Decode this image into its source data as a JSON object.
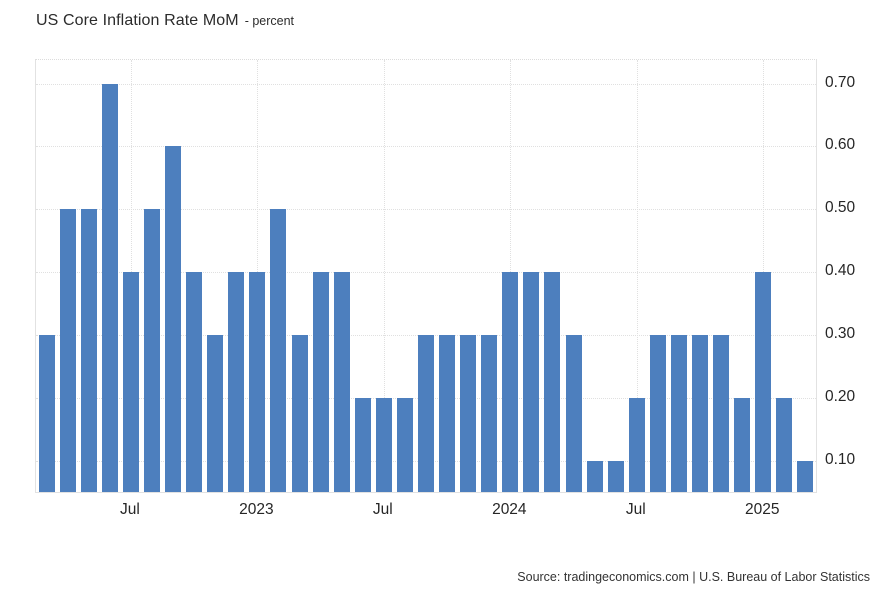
{
  "header": {
    "title": "US Core Inflation Rate MoM",
    "subtitle": "- percent"
  },
  "footer": {
    "source": "Source: tradingeconomics.com | U.S. Bureau of Labor Statistics"
  },
  "colors": {
    "bar": "#4d7fbe",
    "grid": "#e0e0e0",
    "border": "#e2e2e2",
    "text": "#262626"
  },
  "chart_data": {
    "type": "bar",
    "title": "US Core Inflation Rate MoM",
    "ylabel": "percent",
    "x": [
      "Mar 2022",
      "Apr 2022",
      "May 2022",
      "Jun 2022",
      "Jul 2022",
      "Aug 2022",
      "Sep 2022",
      "Oct 2022",
      "Nov 2022",
      "Dec 2022",
      "Jan 2023",
      "Feb 2023",
      "Mar 2023",
      "Apr 2023",
      "May 2023",
      "Jun 2023",
      "Jul 2023",
      "Aug 2023",
      "Sep 2023",
      "Oct 2023",
      "Nov 2023",
      "Dec 2023",
      "Jan 2024",
      "Feb 2024",
      "Mar 2024",
      "Apr 2024",
      "May 2024",
      "Jun 2024",
      "Jul 2024",
      "Aug 2024",
      "Sep 2024",
      "Oct 2024",
      "Nov 2024",
      "Dec 2024",
      "Jan 2025",
      "Feb 2025",
      "Mar 2025"
    ],
    "values": [
      0.3,
      0.5,
      0.5,
      0.7,
      0.4,
      0.5,
      0.6,
      0.4,
      0.3,
      0.4,
      0.4,
      0.5,
      0.3,
      0.4,
      0.4,
      0.2,
      0.2,
      0.2,
      0.3,
      0.3,
      0.3,
      0.3,
      0.4,
      0.4,
      0.4,
      0.3,
      0.1,
      0.1,
      0.2,
      0.3,
      0.3,
      0.3,
      0.3,
      0.2,
      0.4,
      0.2,
      0.1
    ],
    "xticks": [
      {
        "index": 4,
        "label": "Jul"
      },
      {
        "index": 10,
        "label": "2023"
      },
      {
        "index": 16,
        "label": "Jul"
      },
      {
        "index": 22,
        "label": "2024"
      },
      {
        "index": 28,
        "label": "Jul"
      },
      {
        "index": 34,
        "label": "2025"
      }
    ],
    "yticks": [
      {
        "value": 0.7,
        "label": "0.70"
      },
      {
        "value": 0.6,
        "label": "0.60"
      },
      {
        "value": 0.5,
        "label": "0.50"
      },
      {
        "value": 0.4,
        "label": "0.40"
      },
      {
        "value": 0.3,
        "label": "0.30"
      },
      {
        "value": 0.2,
        "label": "0.20"
      },
      {
        "value": 0.1,
        "label": "0.10"
      }
    ],
    "ylim": [
      0.05,
      0.7374
    ],
    "grid": true,
    "legend_position": "none",
    "bar_color": "#4d7fbe"
  }
}
